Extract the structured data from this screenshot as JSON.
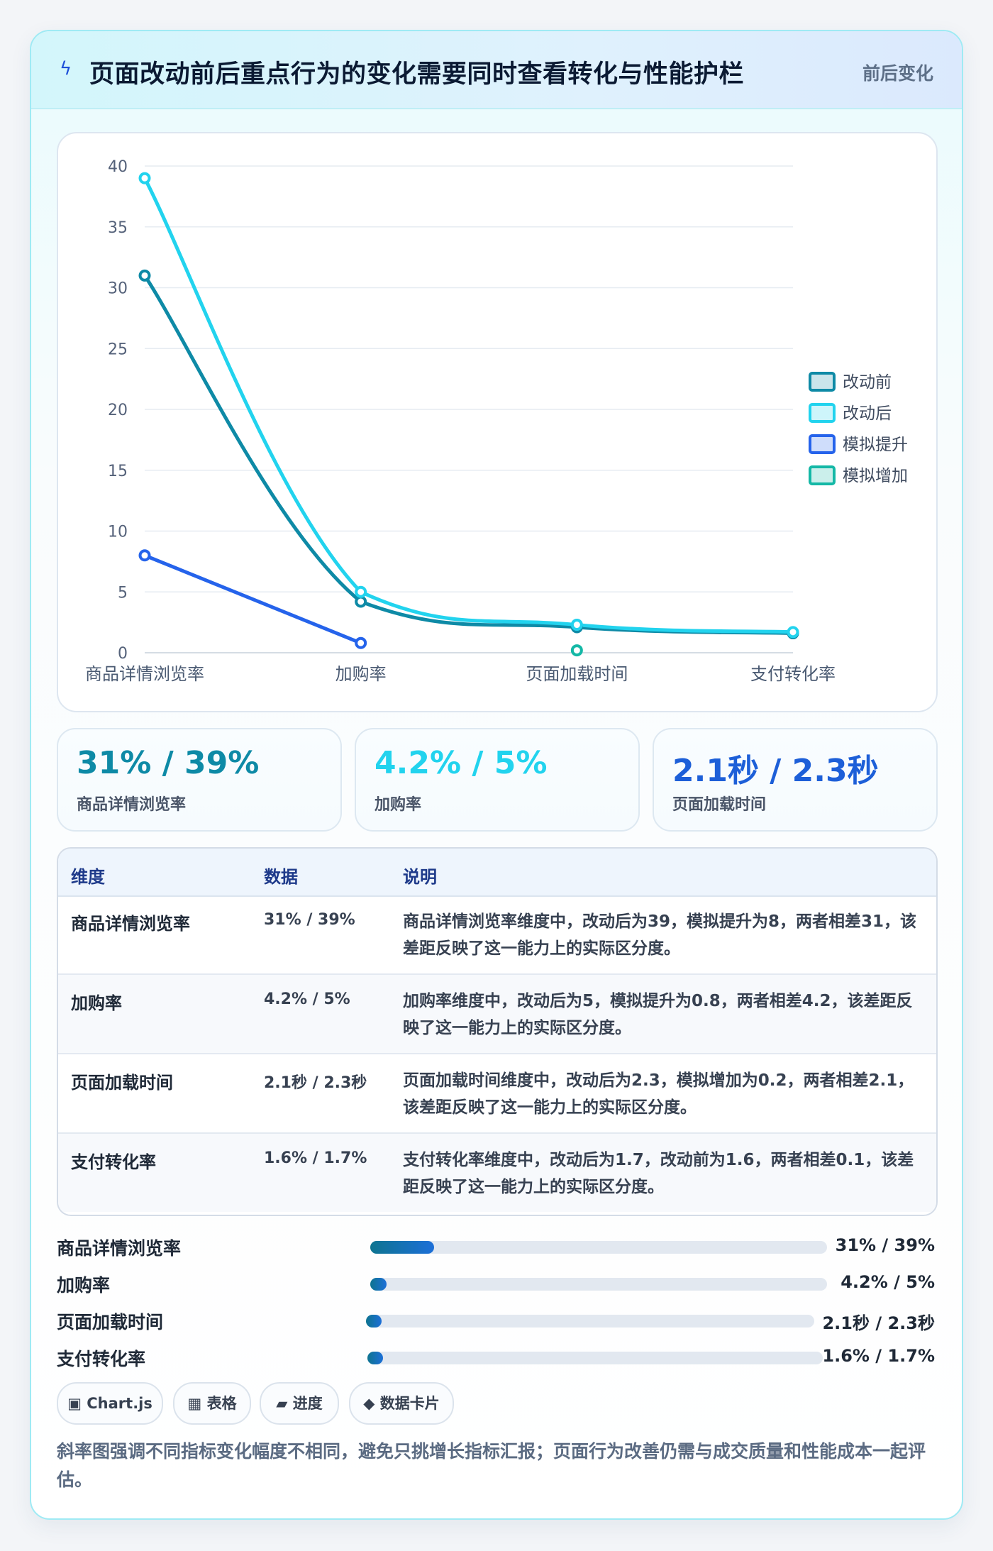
{
  "header": {
    "icon": "lightning-icon",
    "title": "页面改动前后重点行为的变化需要同时查看转化与性能护栏",
    "tag": "前后变化"
  },
  "chart_data": {
    "type": "line",
    "categories": [
      "商品详情浏览率",
      "加购率",
      "页面加载时间",
      "支付转化率"
    ],
    "ylim": [
      0,
      40
    ],
    "yticks": [
      0,
      5,
      10,
      15,
      20,
      25,
      30,
      35,
      40
    ],
    "grid": true,
    "legend_position": "right",
    "series": [
      {
        "name": "改动前",
        "values": [
          31,
          4.2,
          2.1,
          1.6
        ],
        "color": "#0e8aa6",
        "smooth": true
      },
      {
        "name": "改动后",
        "values": [
          39,
          5,
          2.3,
          1.7
        ],
        "color": "#22d3ee",
        "smooth": true
      },
      {
        "name": "模拟提升",
        "values": [
          8,
          0.8,
          null,
          null
        ],
        "color": "#2563eb",
        "smooth": false
      },
      {
        "name": "模拟增加",
        "values": [
          null,
          null,
          0.2,
          null
        ],
        "color": "#14b8a6",
        "smooth": false
      }
    ]
  },
  "stats": [
    {
      "value": "31% / 39%",
      "label": "商品详情浏览率",
      "color": "#0e8aa6"
    },
    {
      "value": "4.2% / 5%",
      "label": "加购率",
      "color": "#22d3ee"
    },
    {
      "value": "2.1秒 / 2.3秒",
      "label": "页面加载时间",
      "color": "#1d5fd8"
    }
  ],
  "table": {
    "headers": [
      "维度",
      "数据",
      "说明"
    ],
    "rows": [
      [
        "商品详情浏览率",
        "31% / 39%",
        "商品详情浏览率维度中，改动后为39，模拟提升为8，两者相差31，该差距反映了这一能力上的实际区分度。"
      ],
      [
        "加购率",
        "4.2% / 5%",
        "加购率维度中，改动后为5，模拟提升为0.8，两者相差4.2，该差距反映了这一能力上的实际区分度。"
      ],
      [
        "页面加载时间",
        "2.1秒 / 2.3秒",
        "页面加载时间维度中，改动后为2.3，模拟增加为0.2，两者相差2.1，该差距反映了这一能力上的实际区分度。"
      ],
      [
        "支付转化率",
        "1.6% / 1.7%",
        "支付转化率维度中，改动后为1.7，改动前为1.6，两者相差0.1，该差距反映了这一能力上的实际区分度。"
      ]
    ]
  },
  "progress": [
    {
      "label": "商品详情浏览率",
      "value": "31% / 39%",
      "fraction": 0.14
    },
    {
      "label": "加购率",
      "value": "4.2% / 5%",
      "fraction": 0.035
    },
    {
      "label": "页面加载时间",
      "value": "2.1秒 / 2.3秒",
      "fraction": 0.035
    },
    {
      "label": "支付转化率",
      "value": "1.6% / 1.7%",
      "fraction": 0.035
    }
  ],
  "chips": [
    {
      "icon": "chart-js-icon",
      "glyph": "▣",
      "label": "Chart.js"
    },
    {
      "icon": "table-icon",
      "glyph": "▦",
      "label": "表格"
    },
    {
      "icon": "progress-icon",
      "glyph": "▰",
      "label": "进度"
    },
    {
      "icon": "data-card-icon",
      "glyph": "◆",
      "label": "数据卡片"
    }
  ],
  "note": "斜率图强调不同指标变化幅度不相同，避免只挑增长指标汇报；页面行为改善仍需与成交质量和性能成本一起评估。"
}
